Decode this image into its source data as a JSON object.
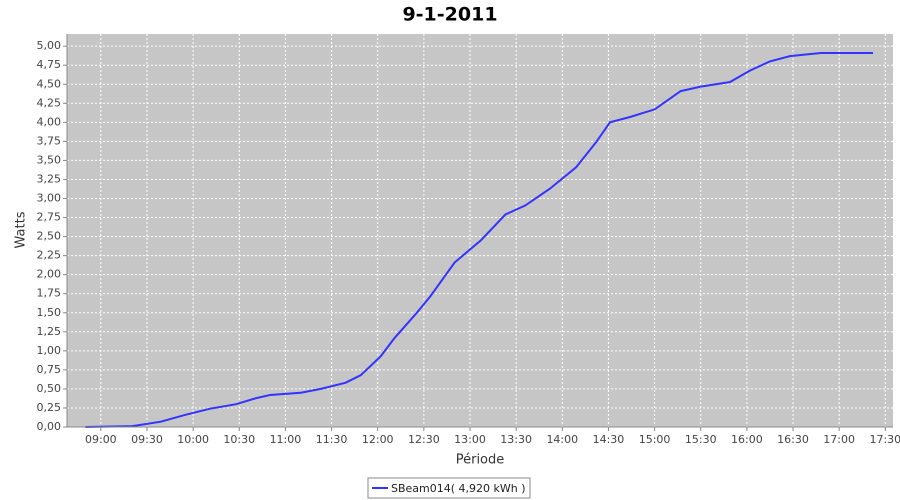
{
  "chart_data": {
    "type": "line",
    "title": "9-1-2011",
    "y_label": "Watts",
    "x_label": "Période",
    "x": [
      530,
      560,
      579,
      595,
      611,
      628,
      641,
      650,
      670,
      683,
      699,
      709,
      722,
      731,
      745,
      754,
      770,
      787,
      803,
      816,
      832,
      849,
      862,
      871,
      884,
      900,
      917,
      930,
      949,
      962,
      975,
      988,
      1008,
      1042
    ],
    "series": [
      {
        "name": "SBeam014( 4,920 kWh )",
        "color": "#3333ff",
        "values": [
          0,
          0.01,
          0.07,
          0.16,
          0.24,
          0.3,
          0.38,
          0.42,
          0.45,
          0.5,
          0.58,
          0.68,
          0.93,
          1.17,
          1.49,
          1.71,
          2.16,
          2.45,
          2.79,
          2.91,
          3.13,
          3.41,
          3.74,
          4.0,
          4.07,
          4.17,
          4.41,
          4.47,
          4.53,
          4.68,
          4.8,
          4.87,
          4.91,
          4.91
        ]
      }
    ],
    "xlim": [
      518,
      1055
    ],
    "xticks": [
      {
        "value": 540,
        "label": "09:00"
      },
      {
        "value": 570,
        "label": "09:30"
      },
      {
        "value": 600,
        "label": "10:00"
      },
      {
        "value": 630,
        "label": "10:30"
      },
      {
        "value": 660,
        "label": "11:00"
      },
      {
        "value": 690,
        "label": "11:30"
      },
      {
        "value": 720,
        "label": "12:00"
      },
      {
        "value": 750,
        "label": "12:30"
      },
      {
        "value": 780,
        "label": "13:00"
      },
      {
        "value": 810,
        "label": "13:30"
      },
      {
        "value": 840,
        "label": "14:00"
      },
      {
        "value": 870,
        "label": "14:30"
      },
      {
        "value": 900,
        "label": "15:00"
      },
      {
        "value": 930,
        "label": "15:30"
      },
      {
        "value": 960,
        "label": "16:00"
      },
      {
        "value": 990,
        "label": "16:30"
      },
      {
        "value": 1020,
        "label": "17:00"
      },
      {
        "value": 1050,
        "label": "17:30"
      }
    ],
    "ylim": [
      0,
      5.16
    ],
    "yticks": [
      {
        "value": 0,
        "label": "0,00"
      },
      {
        "value": 0.25,
        "label": "0,25"
      },
      {
        "value": 0.5,
        "label": "0,50"
      },
      {
        "value": 0.75,
        "label": "0,75"
      },
      {
        "value": 1,
        "label": "1,00"
      },
      {
        "value": 1.25,
        "label": "1,25"
      },
      {
        "value": 1.5,
        "label": "1,50"
      },
      {
        "value": 1.75,
        "label": "1,75"
      },
      {
        "value": 2,
        "label": "2,00"
      },
      {
        "value": 2.25,
        "label": "2,25"
      },
      {
        "value": 2.5,
        "label": "2,50"
      },
      {
        "value": 2.75,
        "label": "2,75"
      },
      {
        "value": 3,
        "label": "3,00"
      },
      {
        "value": 3.25,
        "label": "3,25"
      },
      {
        "value": 3.5,
        "label": "3,50"
      },
      {
        "value": 3.75,
        "label": "3,75"
      },
      {
        "value": 4,
        "label": "4,00"
      },
      {
        "value": 4.25,
        "label": "4,25"
      },
      {
        "value": 4.5,
        "label": "4,50"
      },
      {
        "value": 4.75,
        "label": "4,75"
      },
      {
        "value": 5,
        "label": "5,00"
      }
    ],
    "grid": true
  }
}
